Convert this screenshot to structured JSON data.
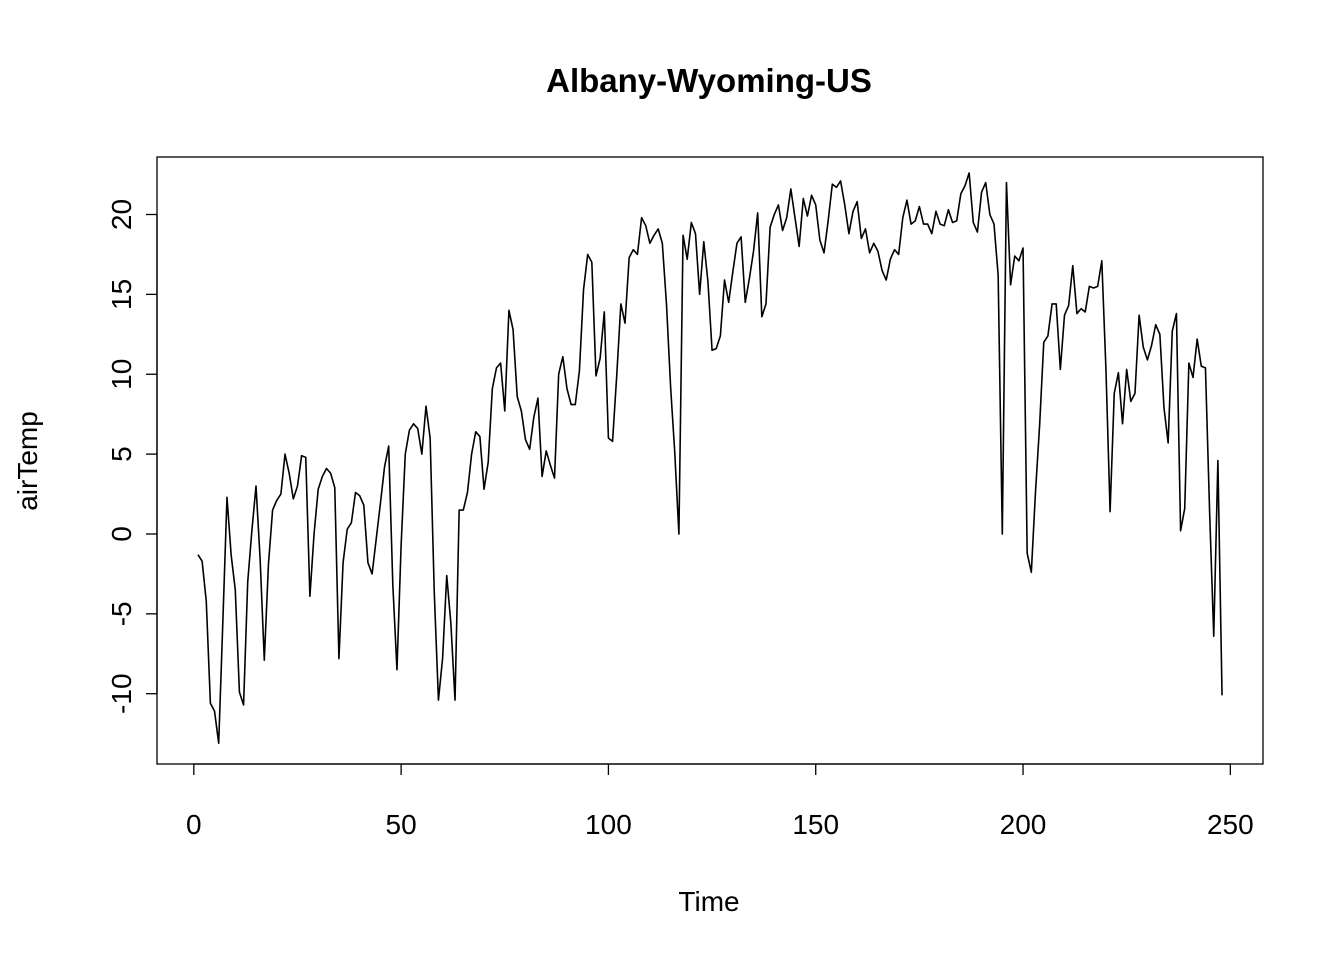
{
  "chart_data": {
    "type": "line",
    "title": "Albany-Wyoming-US",
    "xlabel": "Time",
    "ylabel": "airTemp",
    "xlim": [
      -8.88,
      257.88
    ],
    "ylim": [
      -14.4,
      23.6
    ],
    "xticks": [
      0,
      50,
      100,
      150,
      200,
      250
    ],
    "yticks": [
      -10,
      -5,
      0,
      5,
      10,
      15,
      20
    ],
    "grid": false,
    "legend": "none",
    "series": [
      {
        "color": "#000000",
        "x": [
          1,
          2,
          3,
          4,
          5,
          6,
          7,
          8,
          9,
          10,
          11,
          12,
          13,
          14,
          15,
          16,
          17,
          18,
          19,
          20,
          21,
          22,
          23,
          24,
          25,
          26,
          27,
          28,
          29,
          30,
          31,
          32,
          33,
          34,
          35,
          36,
          37,
          38,
          39,
          40,
          41,
          42,
          43,
          44,
          45,
          46,
          47,
          48,
          49,
          50,
          51,
          52,
          53,
          54,
          55,
          56,
          57,
          58,
          59,
          60,
          61,
          62,
          63,
          64,
          65,
          66,
          67,
          68,
          69,
          70,
          71,
          72,
          73,
          74,
          75,
          76,
          77,
          78,
          79,
          80,
          81,
          82,
          83,
          84,
          85,
          86,
          87,
          88,
          89,
          90,
          91,
          92,
          93,
          94,
          95,
          96,
          97,
          98,
          99,
          100,
          101,
          102,
          103,
          104,
          105,
          106,
          107,
          108,
          109,
          110,
          111,
          112,
          113,
          114,
          115,
          116,
          117,
          118,
          119,
          120,
          121,
          122,
          123,
          124,
          125,
          126,
          127,
          128,
          129,
          130,
          131,
          132,
          133,
          134,
          135,
          136,
          137,
          138,
          139,
          140,
          141,
          142,
          143,
          144,
          145,
          146,
          147,
          148,
          149,
          150,
          151,
          152,
          153,
          154,
          155,
          156,
          157,
          158,
          159,
          160,
          161,
          162,
          163,
          164,
          165,
          166,
          167,
          168,
          169,
          170,
          171,
          172,
          173,
          174,
          175,
          176,
          177,
          178,
          179,
          180,
          181,
          182,
          183,
          184,
          185,
          186,
          187,
          188,
          189,
          190,
          191,
          192,
          193,
          194,
          195,
          196,
          197,
          198,
          199,
          200,
          201,
          202,
          203,
          204,
          205,
          206,
          207,
          208,
          209,
          210,
          211,
          212,
          213,
          214,
          215,
          216,
          217,
          218,
          219,
          220,
          221,
          222,
          223,
          224,
          225,
          226,
          227,
          228,
          229,
          230,
          231,
          232,
          233,
          234,
          235,
          236,
          237,
          238,
          239,
          240,
          241,
          242,
          243,
          244,
          245,
          246,
          247,
          248
        ],
        "y": [
          -1.3,
          -1.7,
          -4.2,
          -10.6,
          -11.1,
          -13.1,
          -5.5,
          2.3,
          -1.3,
          -3.5,
          -9.9,
          -10.7,
          -3.0,
          0.2,
          3.0,
          -1.6,
          -7.9,
          -1.9,
          1.5,
          2.1,
          2.5,
          5.0,
          3.8,
          2.2,
          3.0,
          4.9,
          4.8,
          -3.9,
          0.0,
          2.8,
          3.6,
          4.1,
          3.8,
          2.9,
          -7.8,
          -1.8,
          0.3,
          0.7,
          2.6,
          2.4,
          1.8,
          -1.8,
          -2.5,
          -0.3,
          1.9,
          4.2,
          5.5,
          -3.2,
          -8.5,
          -0.7,
          5.0,
          6.5,
          6.9,
          6.6,
          5.0,
          8.0,
          6.0,
          -3.7,
          -10.4,
          -7.8,
          -2.6,
          -5.6,
          -10.4,
          1.5,
          1.5,
          2.6,
          5.0,
          6.4,
          6.1,
          2.8,
          4.5,
          9.1,
          10.4,
          10.7,
          7.7,
          14.0,
          12.8,
          8.6,
          7.7,
          5.9,
          5.3,
          7.3,
          8.5,
          3.6,
          5.2,
          4.3,
          3.5,
          10.0,
          11.1,
          9.1,
          8.1,
          8.1,
          10.2,
          15.3,
          17.5,
          17.0,
          9.9,
          11.0,
          13.9,
          6.0,
          5.8,
          9.9,
          14.4,
          13.2,
          17.3,
          17.8,
          17.5,
          19.8,
          19.3,
          18.2,
          18.7,
          19.1,
          18.2,
          14.4,
          9.2,
          5.1,
          0.0,
          18.7,
          17.2,
          19.5,
          18.8,
          15.0,
          18.3,
          15.8,
          11.5,
          11.6,
          12.4,
          15.9,
          14.5,
          16.4,
          18.2,
          18.6,
          14.5,
          16.0,
          17.7,
          20.1,
          13.6,
          14.4,
          19.2,
          20.0,
          20.6,
          19.0,
          19.8,
          21.6,
          19.8,
          18.0,
          21.0,
          19.9,
          21.2,
          20.6,
          18.4,
          17.6,
          19.6,
          21.9,
          21.7,
          22.1,
          20.6,
          18.8,
          20.2,
          20.8,
          18.5,
          19.1,
          17.6,
          18.2,
          17.7,
          16.5,
          15.9,
          17.2,
          17.8,
          17.5,
          19.8,
          20.9,
          19.4,
          19.6,
          20.5,
          19.4,
          19.4,
          18.8,
          20.2,
          19.4,
          19.3,
          20.3,
          19.5,
          19.6,
          21.3,
          21.8,
          22.6,
          19.5,
          18.9,
          21.4,
          22.0,
          20.0,
          19.4,
          16.2,
          0.0,
          22.0,
          15.6,
          17.4,
          17.1,
          17.9,
          -1.2,
          -2.4,
          2.6,
          6.8,
          12.0,
          12.4,
          14.4,
          14.4,
          10.3,
          13.7,
          14.3,
          16.8,
          13.8,
          14.1,
          13.9,
          15.5,
          15.4,
          15.5,
          17.1,
          10.3,
          1.4,
          8.8,
          10.1,
          6.9,
          10.3,
          8.3,
          8.8,
          13.7,
          11.7,
          10.9,
          11.8,
          13.1,
          12.5,
          7.9,
          5.7,
          12.7,
          13.8,
          0.2,
          1.6,
          10.7,
          9.8,
          12.2,
          10.5,
          10.4,
          1.4,
          -6.4,
          4.6,
          -10.1
        ]
      }
    ]
  }
}
